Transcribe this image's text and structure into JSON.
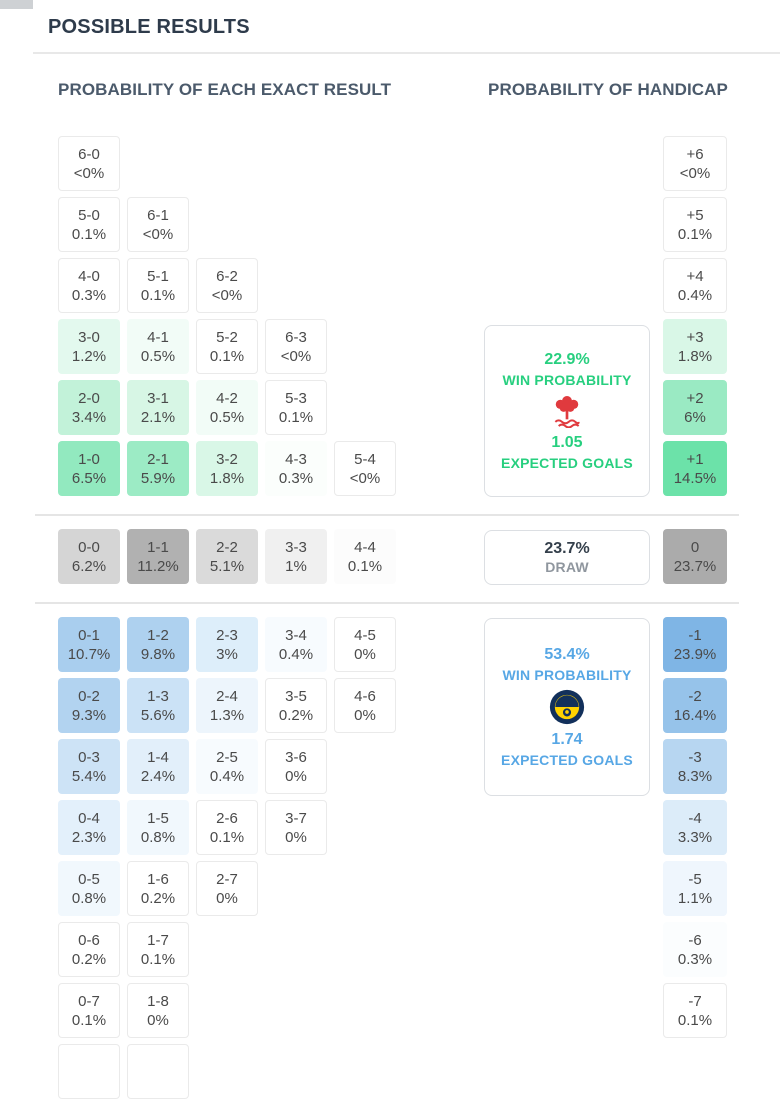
{
  "header": {
    "title": "POSSIBLE RESULTS"
  },
  "sections": {
    "exact_title": "PROBABILITY OF EACH EXACT RESULT",
    "handicap_title": "PROBABILITY OF HANDICAP"
  },
  "colors": {
    "home_accent": "#27cf7f",
    "away_accent": "#57a7e5",
    "draw_value": "#343f4b",
    "forest_red": "#e03a3e",
    "fener_navy": "#12305b",
    "fener_yellow": "#ffd200"
  },
  "grid": {
    "home_rows": [
      {
        "cells": [
          [
            "6-0",
            "<0%",
            "#ffffff"
          ]
        ],
        "h": [
          "+6",
          "<0%",
          "#ffffff"
        ]
      },
      {
        "cells": [
          [
            "5-0",
            "0.1%",
            "#ffffff"
          ],
          [
            "6-1",
            "<0%",
            "#ffffff"
          ]
        ],
        "h": [
          "+5",
          "0.1%",
          "#ffffff"
        ]
      },
      {
        "cells": [
          [
            "4-0",
            "0.3%",
            "#ffffff"
          ],
          [
            "5-1",
            "0.1%",
            "#ffffff"
          ],
          [
            "6-2",
            "<0%",
            "#ffffff"
          ]
        ],
        "h": [
          "+4",
          "0.4%",
          "#ffffff"
        ]
      },
      {
        "cells": [
          [
            "3-0",
            "1.2%",
            "#e3f9ee"
          ],
          [
            "4-1",
            "0.5%",
            "#f2fcf7"
          ],
          [
            "5-2",
            "0.1%",
            "#ffffff"
          ],
          [
            "6-3",
            "<0%",
            "#ffffff"
          ]
        ],
        "h": [
          "+3",
          "1.8%",
          "#d9f7e7"
        ]
      },
      {
        "cells": [
          [
            "2-0",
            "3.4%",
            "#c2f2d9"
          ],
          [
            "3-1",
            "2.1%",
            "#d7f6e5"
          ],
          [
            "4-2",
            "0.5%",
            "#f2fcf7"
          ],
          [
            "5-3",
            "0.1%",
            "#ffffff"
          ]
        ],
        "h": [
          "+2",
          "6%",
          "#9aeac3"
        ]
      },
      {
        "cells": [
          [
            "1-0",
            "6.5%",
            "#92e9bf"
          ],
          [
            "2-1",
            "5.9%",
            "#9cebc5"
          ],
          [
            "3-2",
            "1.8%",
            "#d9f7e7"
          ],
          [
            "4-3",
            "0.3%",
            "#fbfefc"
          ],
          [
            "5-4",
            "<0%",
            "#ffffff"
          ]
        ],
        "h": [
          "+1",
          "14.5%",
          "#6ce2a9"
        ]
      }
    ],
    "draw_row": {
      "cells": [
        [
          "0-0",
          "6.2%",
          "#d5d5d5"
        ],
        [
          "1-1",
          "11.2%",
          "#b1b1b1"
        ],
        [
          "2-2",
          "5.1%",
          "#dadada"
        ],
        [
          "3-3",
          "1%",
          "#f0f0f0"
        ],
        [
          "4-4",
          "0.1%",
          "#fcfcfc"
        ]
      ],
      "h": [
        "0",
        "23.7%",
        "#ababab"
      ]
    },
    "away_rows": [
      {
        "cells": [
          [
            "0-1",
            "10.7%",
            "#a9ceee"
          ],
          [
            "1-2",
            "9.8%",
            "#aed1ef"
          ],
          [
            "2-3",
            "3%",
            "#ddeefa"
          ],
          [
            "3-4",
            "0.4%",
            "#f7fbfe"
          ],
          [
            "4-5",
            "0%",
            "#ffffff"
          ]
        ],
        "h": [
          "-1",
          "23.9%",
          "#7fb5e5"
        ]
      },
      {
        "cells": [
          [
            "0-2",
            "9.3%",
            "#b2d3f0"
          ],
          [
            "1-3",
            "5.6%",
            "#cbe2f6"
          ],
          [
            "2-4",
            "1.3%",
            "#edf5fc"
          ],
          [
            "3-5",
            "0.2%",
            "#ffffff"
          ],
          [
            "4-6",
            "0%",
            "#ffffff"
          ]
        ],
        "h": [
          "-2",
          "16.4%",
          "#96c3ea"
        ]
      },
      {
        "cells": [
          [
            "0-3",
            "5.4%",
            "#cde3f6"
          ],
          [
            "1-4",
            "2.4%",
            "#e2effa"
          ],
          [
            "2-5",
            "0.4%",
            "#f7fbfe"
          ],
          [
            "3-6",
            "0%",
            "#ffffff"
          ]
        ],
        "h": [
          "-3",
          "8.3%",
          "#b7d6f1"
        ]
      },
      {
        "cells": [
          [
            "0-4",
            "2.3%",
            "#e3f0fb"
          ],
          [
            "1-5",
            "0.8%",
            "#f1f8fd"
          ],
          [
            "2-6",
            "0.1%",
            "#ffffff"
          ],
          [
            "3-7",
            "0%",
            "#ffffff"
          ]
        ],
        "h": [
          "-4",
          "3.3%",
          "#dcecf9"
        ]
      },
      {
        "cells": [
          [
            "0-5",
            "0.8%",
            "#f1f8fd"
          ],
          [
            "1-6",
            "0.2%",
            "#ffffff"
          ],
          [
            "2-7",
            "0%",
            "#ffffff"
          ]
        ],
        "h": [
          "-5",
          "1.1%",
          "#eff6fd"
        ]
      },
      {
        "cells": [
          [
            "0-6",
            "0.2%",
            "#ffffff"
          ],
          [
            "1-7",
            "0.1%",
            "#ffffff"
          ]
        ],
        "h": [
          "-6",
          "0.3%",
          "#fbfdfe"
        ]
      },
      {
        "cells": [
          [
            "0-7",
            "0.1%",
            "#ffffff"
          ],
          [
            "1-8",
            "0%",
            "#ffffff"
          ]
        ],
        "h": [
          "-7",
          "0.1%",
          "#ffffff"
        ]
      }
    ],
    "partial_row_cells": 2
  },
  "cards": {
    "home": {
      "win_prob": "22.9%",
      "win_label": "WIN PROBABILITY",
      "expected_goals": "1.05",
      "expected_label": "EXPECTED GOALS",
      "team_logo": "nottingham-forest"
    },
    "draw": {
      "prob": "23.7%",
      "label": "DRAW"
    },
    "away": {
      "win_prob": "53.4%",
      "win_label": "WIN PROBABILITY",
      "expected_goals": "1.74",
      "expected_label": "EXPECTED GOALS",
      "team_logo": "fenerbahce"
    }
  }
}
